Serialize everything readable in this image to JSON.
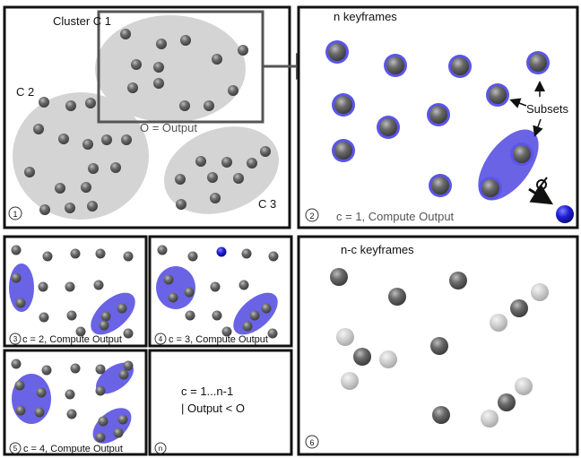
{
  "panel1": {
    "cluster_c1": "Cluster C 1",
    "cluster_c2": "C 2",
    "cluster_c3": "C 3",
    "output_label": "O = Output",
    "step": "1"
  },
  "panel2": {
    "title": "n keyframes",
    "subsets": "Subsets",
    "compute": "c = 1, Compute Output",
    "step": "2"
  },
  "panel3": {
    "compute": "c = 2, Compute Output",
    "step": "3"
  },
  "panel4": {
    "compute": "c = 3, Compute Output",
    "step": "4"
  },
  "panel5": {
    "compute": "c = 4, Compute Output",
    "step": "5"
  },
  "panel_n": {
    "line1": "c = 1...n-1",
    "line2": "|  Output < O",
    "step": "n"
  },
  "panel6": {
    "title": "n-c keyframes",
    "step": "6"
  },
  "colors": {
    "cluster_fill": "#d4d4d4",
    "subset_fill": "#6a63e6",
    "ball_dark": "#5a5a5a",
    "ball_light": "#c8c8c8",
    "ball_blue": "#2222c8"
  }
}
